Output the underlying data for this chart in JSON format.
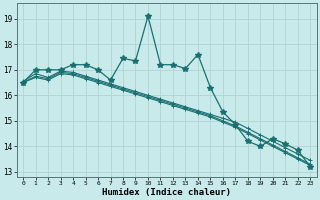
{
  "xlabel": "Humidex (Indice chaleur)",
  "background_color": "#c8eaea",
  "grid_color": "#b0d4d4",
  "line_color": "#1a7070",
  "xlim": [
    -0.5,
    23.5
  ],
  "ylim": [
    12.8,
    19.6
  ],
  "yticks": [
    13,
    14,
    15,
    16,
    17,
    18,
    19
  ],
  "xticks": [
    0,
    1,
    2,
    3,
    4,
    5,
    6,
    7,
    8,
    9,
    10,
    11,
    12,
    13,
    14,
    15,
    16,
    17,
    18,
    19,
    20,
    21,
    22,
    23
  ],
  "main_line": [
    16.5,
    17.0,
    17.0,
    17.0,
    17.2,
    17.2,
    17.0,
    16.6,
    17.45,
    17.35,
    19.1,
    17.2,
    17.2,
    17.05,
    17.6,
    16.3,
    15.35,
    14.85,
    14.2,
    14.0,
    14.3,
    14.1,
    13.85,
    13.2
  ],
  "line2": [
    16.55,
    16.85,
    16.7,
    16.95,
    16.9,
    16.75,
    16.6,
    16.45,
    16.3,
    16.15,
    16.0,
    15.85,
    15.7,
    15.55,
    15.4,
    15.25,
    15.1,
    14.95,
    14.7,
    14.45,
    14.2,
    13.95,
    13.7,
    13.45
  ],
  "line3": [
    16.5,
    16.75,
    16.65,
    16.9,
    16.85,
    16.7,
    16.55,
    16.4,
    16.25,
    16.1,
    15.95,
    15.8,
    15.65,
    15.5,
    15.35,
    15.2,
    15.0,
    14.8,
    14.55,
    14.3,
    14.05,
    13.8,
    13.55,
    13.3
  ],
  "line4": [
    16.5,
    16.7,
    16.6,
    16.85,
    16.8,
    16.65,
    16.5,
    16.35,
    16.2,
    16.05,
    15.9,
    15.75,
    15.6,
    15.45,
    15.3,
    15.15,
    14.95,
    14.75,
    14.5,
    14.25,
    14.0,
    13.75,
    13.5,
    13.25
  ]
}
